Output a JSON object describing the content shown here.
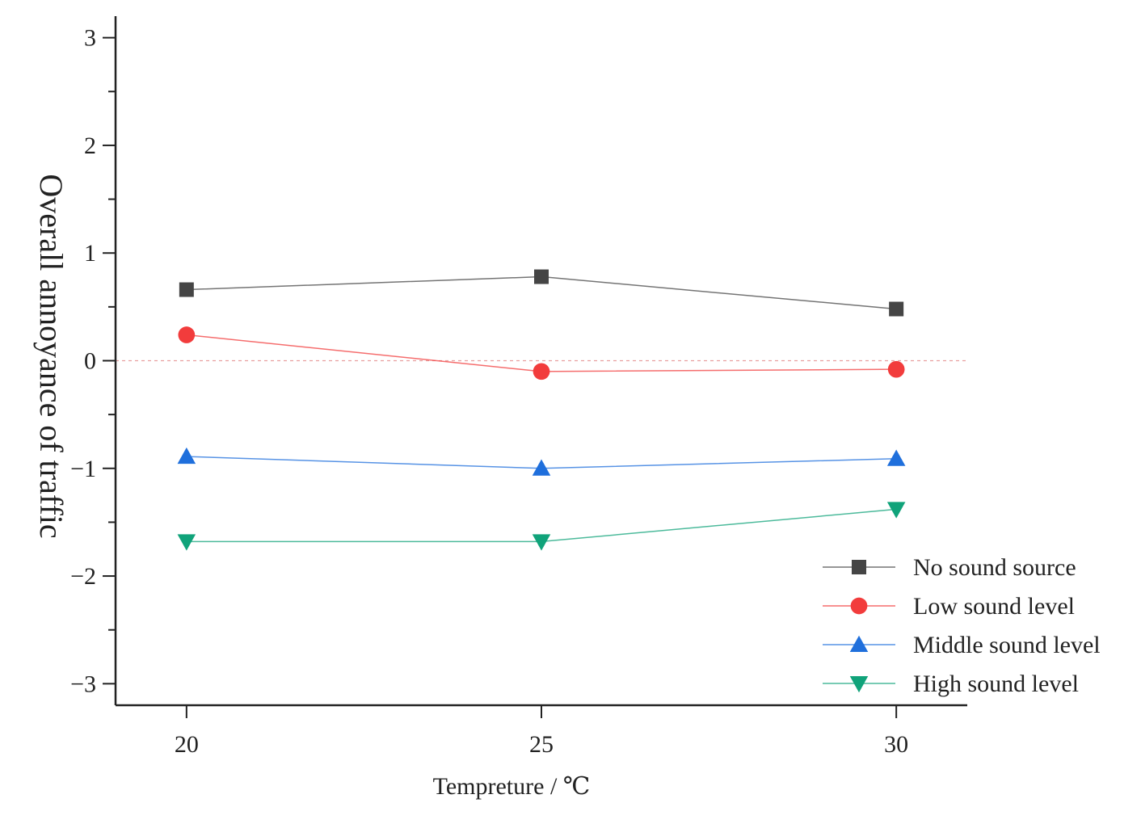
{
  "chart_data": {
    "type": "line",
    "title": "",
    "xlabel": "Tempreture / ℃",
    "ylabel": "Overall annoyance of traffic",
    "x": [
      20,
      25,
      30
    ],
    "x_ticks": [
      "20",
      "25",
      "30"
    ],
    "xlim": [
      19,
      31
    ],
    "ylim": [
      -3.2,
      3.2
    ],
    "y_ticks": [
      "3",
      "2",
      "1",
      "0",
      "−1",
      "−2",
      "−3"
    ],
    "y_tick_values": [
      3,
      2,
      1,
      0,
      -1,
      -2,
      -3
    ],
    "reference_line": 0,
    "grid": false,
    "legend_position": "bottom-right",
    "series": [
      {
        "name": "No sound source",
        "values": [
          0.66,
          0.78,
          0.48
        ],
        "color": "#454545",
        "marker": "square"
      },
      {
        "name": "Low sound level",
        "values": [
          0.24,
          -0.1,
          -0.08
        ],
        "color": "#f23c3c",
        "marker": "circle"
      },
      {
        "name": "Middle sound level",
        "values": [
          -0.89,
          -1.0,
          -0.91
        ],
        "color": "#1f6fdc",
        "marker": "triangle-up"
      },
      {
        "name": "High sound level",
        "values": [
          -1.68,
          -1.68,
          -1.38
        ],
        "color": "#10a37a",
        "marker": "triangle-down"
      }
    ]
  }
}
